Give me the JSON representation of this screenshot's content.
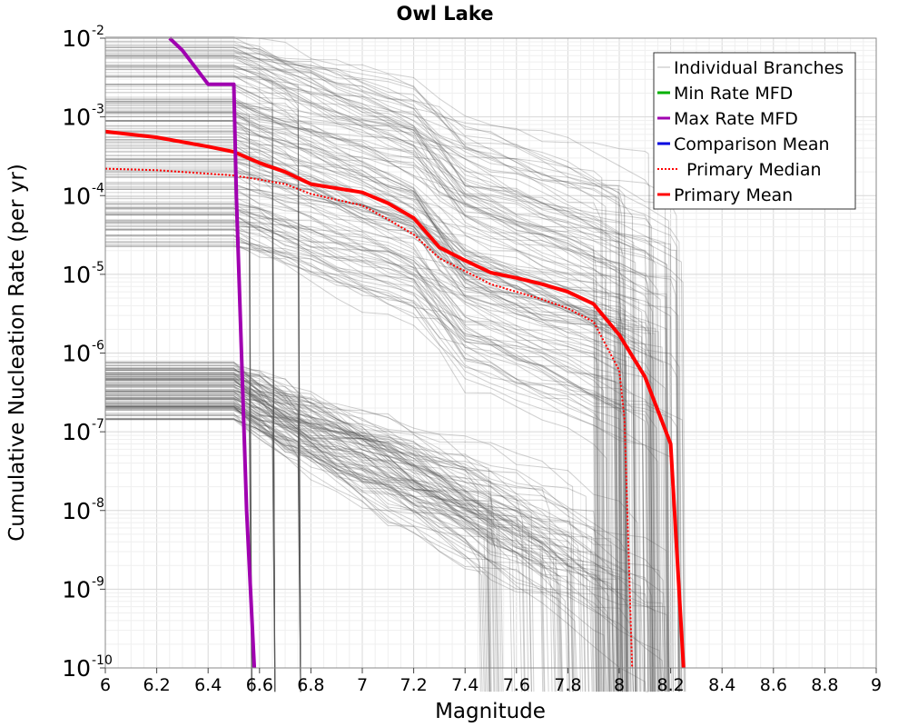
{
  "chart_data": {
    "type": "line",
    "title": "Owl Lake",
    "xlabel": "Magnitude",
    "ylabel": "Cumulative Nucleation Rate (per yr)",
    "xlim": [
      6,
      9
    ],
    "ylim": [
      1e-10,
      0.01
    ],
    "yscale": "log",
    "grid": true,
    "legend_position": "top-right",
    "x_ticks": [
      "6",
      "6.2",
      "6.4",
      "6.6",
      "6.8",
      "7",
      "7.2",
      "7.4",
      "7.6",
      "7.8",
      "8",
      "8.2",
      "8.4",
      "8.6",
      "8.8",
      "9"
    ],
    "y_ticks": [
      {
        "base": "10",
        "exp": "-2",
        "value": 0.01
      },
      {
        "base": "10",
        "exp": "-3",
        "value": 0.001
      },
      {
        "base": "10",
        "exp": "-4",
        "value": 0.0001
      },
      {
        "base": "10",
        "exp": "-5",
        "value": 1e-05
      },
      {
        "base": "10",
        "exp": "-6",
        "value": 1e-06
      },
      {
        "base": "10",
        "exp": "-7",
        "value": 1e-07
      },
      {
        "base": "10",
        "exp": "-8",
        "value": 1e-08
      },
      {
        "base": "10",
        "exp": "-9",
        "value": 1e-09
      },
      {
        "base": "10",
        "exp": "-10",
        "value": 1e-10
      }
    ],
    "legend": [
      {
        "label": "Individual Branches",
        "color": "#bdbdbd",
        "style": "solid"
      },
      {
        "label": "Min Rate MFD",
        "color": "#00b000",
        "style": "solid"
      },
      {
        "label": "Max Rate MFD",
        "color": "#a000b0",
        "style": "solid"
      },
      {
        "label": "Comparison Mean",
        "color": "#0000e0",
        "style": "solid"
      },
      {
        "label": "Primary Median",
        "color": "#ff0000",
        "style": "dotted"
      },
      {
        "label": "Primary Mean",
        "color": "#ff0000",
        "style": "solid"
      }
    ],
    "series": [
      {
        "legend_label": "Primary Mean",
        "color": "#ff0000",
        "style": "solid",
        "x": [
          6.0,
          6.2,
          6.4,
          6.5,
          6.6,
          6.7,
          6.8,
          7.0,
          7.1,
          7.2,
          7.3,
          7.4,
          7.5,
          7.6,
          7.7,
          7.8,
          7.9,
          8.0,
          8.1,
          8.2,
          8.25
        ],
        "y": [
          0.00065,
          0.00055,
          0.00042,
          0.00036,
          0.00026,
          0.0002,
          0.00014,
          0.00011,
          8e-05,
          5.2e-05,
          2.2e-05,
          1.5e-05,
          1.05e-05,
          9e-06,
          7.5e-06,
          6e-06,
          4.2e-06,
          1.7e-06,
          5e-07,
          7e-08,
          1e-10
        ]
      },
      {
        "legend_label": "Primary Median",
        "color": "#ff0000",
        "style": "dotted",
        "x": [
          6.0,
          6.2,
          6.4,
          6.5,
          6.6,
          6.7,
          6.8,
          7.0,
          7.1,
          7.2,
          7.3,
          7.4,
          7.5,
          7.6,
          7.7,
          7.8,
          7.9,
          8.0,
          8.02,
          8.05
        ],
        "y": [
          0.00022,
          0.00021,
          0.00019,
          0.00018,
          0.00016,
          0.00014,
          0.000105,
          7.5e-05,
          5e-05,
          3.2e-05,
          1.6e-05,
          1.1e-05,
          7.5e-06,
          6e-06,
          4.8e-06,
          3.7e-06,
          2.5e-06,
          6e-07,
          1.5e-07,
          1e-10
        ]
      },
      {
        "legend_label": "Max Rate MFD",
        "color": "#a000b0",
        "style": "solid",
        "x": [
          6.25,
          6.3,
          6.4,
          6.5,
          6.51,
          6.55,
          6.58
        ],
        "y": [
          0.01,
          0.007,
          0.0026,
          0.0026,
          0.0001,
          1e-08,
          1e-10
        ]
      }
    ]
  }
}
